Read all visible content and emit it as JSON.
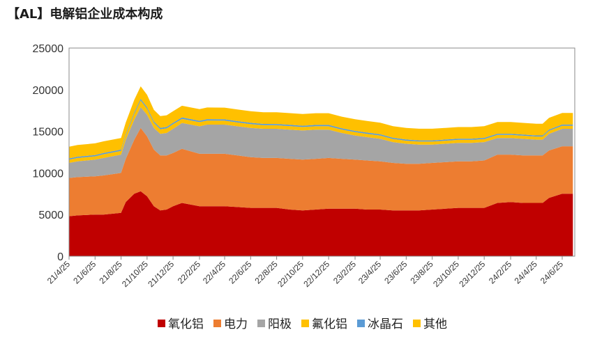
{
  "title": "【AL】电解铝企业成本构成",
  "chart_data": {
    "type": "area",
    "stacked": true,
    "ylim": [
      0,
      25000
    ],
    "yticks": [
      0,
      5000,
      10000,
      15000,
      20000,
      25000
    ],
    "xticks": [
      "21/4/25",
      "21/6/25",
      "21/8/25",
      "21/10/25",
      "21/12/25",
      "22/2/25",
      "22/4/25",
      "22/6/25",
      "22/8/25",
      "22/10/25",
      "22/12/25",
      "23/2/25",
      "23/4/25",
      "23/6/25",
      "23/8/25",
      "23/10/25",
      "23/12/25",
      "24/2/25",
      "24/4/25",
      "24/6/25"
    ],
    "x": [
      "21/4/25",
      "21/5/15",
      "21/6/25",
      "21/7/15",
      "21/8/25",
      "21/9/5",
      "21/9/25",
      "21/10/10",
      "21/10/25",
      "21/11/10",
      "21/11/25",
      "21/12/10",
      "21/12/25",
      "22/1/15",
      "22/2/25",
      "22/3/15",
      "22/4/25",
      "22/5/25",
      "22/6/25",
      "22/7/25",
      "22/8/25",
      "22/9/25",
      "22/10/25",
      "22/11/25",
      "22/12/25",
      "23/1/25",
      "23/2/25",
      "23/3/25",
      "23/4/25",
      "23/5/25",
      "23/6/25",
      "23/7/25",
      "23/8/25",
      "23/9/25",
      "23/10/25",
      "23/11/25",
      "23/12/25",
      "24/1/25",
      "24/2/25",
      "24/3/25",
      "24/4/25",
      "24/5/10",
      "24/5/25",
      "24/6/25",
      "24/7/20"
    ],
    "series": [
      {
        "name": "氧化铝",
        "color": "#C00000",
        "values": [
          4800,
          4900,
          5000,
          5000,
          5200,
          6500,
          7500,
          7800,
          7200,
          6000,
          5500,
          5600,
          6000,
          6400,
          6000,
          6000,
          6000,
          5900,
          5800,
          5800,
          5800,
          5600,
          5500,
          5600,
          5700,
          5700,
          5700,
          5600,
          5600,
          5500,
          5500,
          5500,
          5600,
          5700,
          5800,
          5800,
          5800,
          6400,
          6500,
          6400,
          6400,
          6400,
          7000,
          7500,
          7500
        ]
      },
      {
        "name": "电力",
        "color": "#ED7D31",
        "values": [
          4600,
          4600,
          4600,
          4700,
          4800,
          5200,
          6500,
          7600,
          7200,
          6800,
          6600,
          6500,
          6400,
          6500,
          6300,
          6300,
          6300,
          6200,
          6100,
          6000,
          6000,
          6100,
          6100,
          6100,
          6100,
          6000,
          5900,
          5900,
          5800,
          5700,
          5600,
          5600,
          5600,
          5600,
          5600,
          5600,
          5700,
          5800,
          5700,
          5700,
          5700,
          5700,
          5700,
          5700,
          5700
        ]
      },
      {
        "name": "阳极",
        "color": "#A5A5A5",
        "values": [
          1800,
          1900,
          2000,
          2100,
          2200,
          2300,
          2400,
          2500,
          2600,
          2600,
          2600,
          2700,
          2900,
          3100,
          3300,
          3500,
          3500,
          3500,
          3500,
          3500,
          3500,
          3500,
          3500,
          3500,
          3400,
          3100,
          2900,
          2800,
          2700,
          2500,
          2400,
          2300,
          2200,
          2200,
          2200,
          2200,
          2200,
          2000,
          2000,
          2000,
          1900,
          1900,
          2000,
          2100,
          2100
        ]
      },
      {
        "name": "氟化铝",
        "color": "#FFC000",
        "values": [
          400,
          400,
          400,
          450,
          450,
          500,
          700,
          800,
          700,
          600,
          550,
          550,
          550,
          500,
          500,
          500,
          480,
          460,
          460,
          440,
          430,
          430,
          420,
          420,
          420,
          410,
          400,
          400,
          400,
          380,
          370,
          370,
          370,
          370,
          370,
          370,
          370,
          370,
          370,
          370,
          370,
          370,
          370,
          370,
          370
        ]
      },
      {
        "name": "冰晶石",
        "color": "#5B9BD5",
        "values": [
          150,
          150,
          150,
          150,
          150,
          150,
          180,
          200,
          190,
          180,
          170,
          170,
          170,
          170,
          160,
          160,
          160,
          160,
          160,
          150,
          150,
          150,
          150,
          150,
          150,
          150,
          150,
          150,
          140,
          140,
          140,
          140,
          140,
          140,
          140,
          140,
          140,
          140,
          140,
          140,
          140,
          140,
          140,
          140,
          140
        ]
      },
      {
        "name": "其他",
        "color": "#FFC000",
        "values": [
          1400,
          1400,
          1400,
          1400,
          1400,
          1400,
          1500,
          1500,
          1500,
          1400,
          1400,
          1400,
          1400,
          1400,
          1400,
          1400,
          1400,
          1400,
          1400,
          1400,
          1400,
          1400,
          1400,
          1400,
          1400,
          1400,
          1400,
          1400,
          1400,
          1400,
          1400,
          1400,
          1400,
          1400,
          1400,
          1400,
          1400,
          1400,
          1400,
          1400,
          1400,
          1400,
          1400,
          1400,
          1400
        ]
      }
    ],
    "legend_position": "bottom",
    "grid": false
  }
}
